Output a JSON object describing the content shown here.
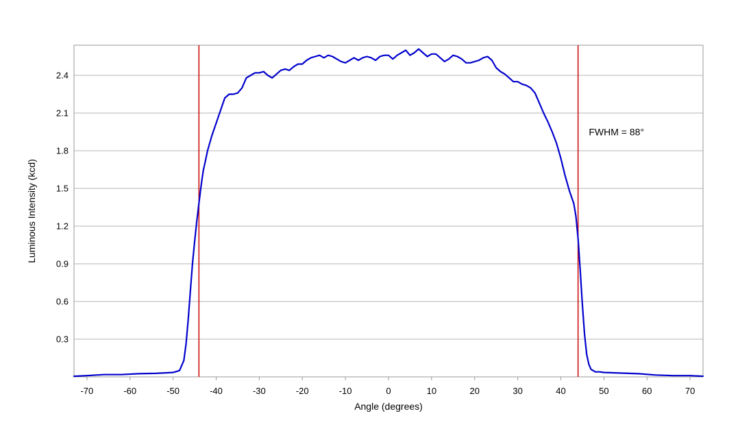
{
  "chart_data": {
    "type": "line",
    "title": "",
    "xlabel": "Angle (degrees)",
    "ylabel": "Luminous Intensity (kcd)",
    "xlim": [
      -73,
      73
    ],
    "ylim": [
      0,
      2.64
    ],
    "xticks": [
      -70,
      -60,
      -50,
      -40,
      -30,
      -20,
      -10,
      0,
      10,
      20,
      30,
      40,
      50,
      60,
      70
    ],
    "yticks": [
      0.3,
      0.6,
      0.9,
      1.2,
      1.5,
      1.8,
      2.1,
      2.4
    ],
    "xtick_labels": [
      "-70",
      "-60",
      "-50",
      "-40",
      "-30",
      "-20",
      "-10",
      "0",
      "10",
      "20",
      "30",
      "40",
      "50",
      "60",
      "70"
    ],
    "ytick_labels": [
      "0.3",
      "0.6",
      "0.9",
      "1.2",
      "1.5",
      "1.8",
      "2.1",
      "2.4"
    ],
    "grid": "horizontal",
    "legend": "none",
    "series": [
      {
        "color": "#0000cc",
        "x": [
          -73,
          -70,
          -66,
          -62,
          -58,
          -54,
          -50,
          -48.5,
          -47.5,
          -47,
          -46.5,
          -46,
          -45.5,
          -45,
          -44.5,
          -44,
          -43.5,
          -43,
          -42.5,
          -42,
          -41,
          -40,
          -39,
          -38,
          -37,
          -36,
          -35,
          -34,
          -33,
          -32,
          -31,
          -30,
          -29,
          -28,
          -27,
          -26,
          -25,
          -24,
          -23,
          -22,
          -21,
          -20,
          -19,
          -18,
          -17,
          -16,
          -15,
          -14,
          -13,
          -12,
          -11,
          -10,
          -9,
          -8,
          -7,
          -6,
          -5,
          -4,
          -3,
          -2,
          -1,
          0,
          1,
          2,
          3,
          4,
          5,
          6,
          7,
          8,
          9,
          10,
          11,
          12,
          13,
          14,
          15,
          16,
          17,
          18,
          19,
          20,
          21,
          22,
          23,
          24,
          25,
          26,
          27,
          28,
          29,
          30,
          31,
          32,
          33,
          34,
          35,
          36,
          37,
          38,
          39,
          40,
          41,
          42,
          43,
          43.5,
          44,
          44.5,
          45,
          45.5,
          46,
          46.5,
          47,
          47.5,
          48,
          49,
          50,
          54,
          58,
          62,
          66,
          70,
          73
        ],
        "y": [
          0.005,
          0.01,
          0.018,
          0.018,
          0.025,
          0.028,
          0.035,
          0.05,
          0.13,
          0.26,
          0.45,
          0.68,
          0.9,
          1.08,
          1.24,
          1.38,
          1.52,
          1.64,
          1.72,
          1.8,
          1.92,
          2.02,
          2.12,
          2.22,
          2.25,
          2.25,
          2.26,
          2.3,
          2.38,
          2.4,
          2.42,
          2.42,
          2.43,
          2.4,
          2.38,
          2.41,
          2.44,
          2.45,
          2.44,
          2.47,
          2.49,
          2.49,
          2.52,
          2.54,
          2.55,
          2.56,
          2.54,
          2.56,
          2.55,
          2.53,
          2.51,
          2.5,
          2.52,
          2.54,
          2.52,
          2.54,
          2.55,
          2.54,
          2.52,
          2.55,
          2.56,
          2.56,
          2.53,
          2.56,
          2.58,
          2.6,
          2.56,
          2.58,
          2.61,
          2.58,
          2.55,
          2.57,
          2.57,
          2.54,
          2.51,
          2.53,
          2.56,
          2.55,
          2.53,
          2.5,
          2.5,
          2.51,
          2.52,
          2.54,
          2.55,
          2.52,
          2.46,
          2.43,
          2.41,
          2.38,
          2.35,
          2.35,
          2.33,
          2.32,
          2.3,
          2.26,
          2.18,
          2.1,
          2.03,
          1.95,
          1.86,
          1.74,
          1.6,
          1.48,
          1.38,
          1.28,
          1.1,
          0.85,
          0.58,
          0.34,
          0.18,
          0.1,
          0.06,
          0.05,
          0.04,
          0.04,
          0.035,
          0.03,
          0.025,
          0.015,
          0.01,
          0.01,
          0.005
        ]
      }
    ],
    "vertical_lines": [
      {
        "x": -44,
        "color": "#cc0000"
      },
      {
        "x": 44,
        "color": "#cc0000"
      }
    ],
    "annotations": [
      {
        "text": "FWHM = 88°",
        "x": 46.5,
        "y": 1.95
      }
    ]
  }
}
